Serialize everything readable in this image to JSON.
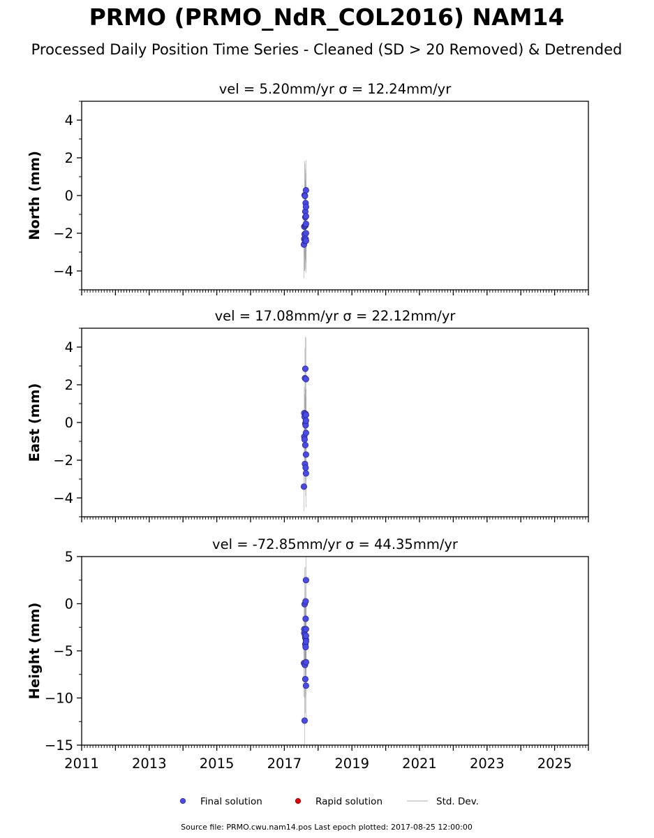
{
  "title": "PRMO (PRMO_NdR_COL2016) NAM14",
  "subtitle": "Processed Daily Position Time Series - Cleaned (SD > 20 Removed) & Detrended",
  "footer": "Source file: PRMO.cwu.nam14.pos  Last epoch plotted: 2017-08-25 12:00:00",
  "legend": [
    {
      "label": "Final solution",
      "color": "#4a4ae6",
      "kind": "marker"
    },
    {
      "label": "Rapid solution",
      "color": "#dd0000",
      "kind": "marker"
    },
    {
      "label": "Std. Dev.",
      "color": "#c8c8c8",
      "kind": "line"
    }
  ],
  "colors": {
    "final": "#4a4ae6",
    "final_edge": "#23238a",
    "std_dev": "#9a9a9a"
  },
  "chart_data": [
    {
      "type": "scatter",
      "title": "vel = 5.20mm/yr   σ = 12.24mm/yr",
      "ylabel": "North (mm)",
      "xlim": [
        2011,
        2026
      ],
      "ylim": [
        -5,
        5
      ],
      "yticks": [
        -4,
        -2,
        0,
        2,
        4
      ],
      "yticklabels": [
        "−4",
        "−2",
        "0",
        "2",
        "4"
      ],
      "x": [
        2017.58,
        2017.59,
        2017.59,
        2017.6,
        2017.6,
        2017.61,
        2017.61,
        2017.62,
        2017.62,
        2017.62,
        2017.63,
        2017.63,
        2017.63,
        2017.64,
        2017.64,
        2017.64,
        2017.64,
        2017.64,
        2017.64
      ],
      "y": [
        -2.6,
        -2.3,
        -1.65,
        -2.05,
        0.02,
        -0.02,
        -2.4,
        -1.6,
        -1.15,
        -0.85,
        -1.55,
        -2.3,
        -0.4,
        -1.5,
        -1.1,
        -0.6,
        -2.0,
        -2.4,
        0.28
      ],
      "sd": [
        1.8,
        1.7,
        1.6,
        1.9,
        1.8,
        1.7,
        1.6,
        1.8,
        1.9,
        1.7,
        1.8,
        1.6,
        1.8,
        2.0,
        1.7,
        1.8,
        1.6,
        1.7,
        1.6
      ]
    },
    {
      "type": "scatter",
      "title": "vel = 17.08mm/yr   σ = 22.12mm/yr",
      "ylabel": "East (mm)",
      "xlim": [
        2011,
        2026
      ],
      "ylim": [
        -5,
        5
      ],
      "yticks": [
        -4,
        -2,
        0,
        2,
        4
      ],
      "yticklabels": [
        "−4",
        "−2",
        "0",
        "2",
        "4"
      ],
      "x": [
        2017.58,
        2017.59,
        2017.59,
        2017.6,
        2017.6,
        2017.61,
        2017.61,
        2017.62,
        2017.62,
        2017.62,
        2017.63,
        2017.63,
        2017.63,
        2017.64,
        2017.64,
        2017.64,
        2017.64,
        2017.64,
        2017.64
      ],
      "y": [
        -3.4,
        -0.75,
        0.5,
        -0.9,
        0.3,
        2.35,
        -2.2,
        -0.05,
        2.85,
        -1.2,
        0.45,
        -2.4,
        -0.15,
        -1.7,
        2.3,
        -2.7,
        -0.55,
        0.4,
        0.1
      ],
      "sd": [
        1.3,
        1.2,
        1.4,
        1.3,
        1.2,
        1.6,
        1.3,
        1.4,
        1.7,
        1.2,
        1.3,
        1.5,
        1.2,
        1.4,
        2.2,
        1.8,
        1.3,
        1.4,
        1.2
      ]
    },
    {
      "type": "scatter",
      "title": "vel = -72.85mm/yr   σ = 44.35mm/yr",
      "ylabel": "Height (mm)",
      "xlim": [
        2011,
        2026
      ],
      "ylim": [
        -15,
        5
      ],
      "yticks": [
        -15,
        -10,
        -5,
        0,
        5
      ],
      "yticklabels": [
        "−15",
        "−10",
        "−5",
        "0",
        "5"
      ],
      "x": [
        2017.58,
        2017.59,
        2017.59,
        2017.6,
        2017.6,
        2017.61,
        2017.61,
        2017.62,
        2017.62,
        2017.62,
        2017.63,
        2017.63,
        2017.63,
        2017.64,
        2017.64,
        2017.64,
        2017.64,
        2017.64,
        2017.64,
        2017.64
      ],
      "y": [
        -6.3,
        -2.7,
        -3.1,
        -12.4,
        -0.05,
        -6.5,
        -3.3,
        -8.0,
        -3.6,
        -4.3,
        0.25,
        -1.6,
        -4.6,
        -3.8,
        -8.7,
        -2.7,
        2.5,
        -4.0,
        -3.4,
        -6.2
      ],
      "sd": [
        3.6,
        3.4,
        3.2,
        3.8,
        3.9,
        3.5,
        3.3,
        3.6,
        3.4,
        3.2,
        3.7,
        3.4,
        3.3,
        3.5,
        3.6,
        3.3,
        3.8,
        3.4,
        3.2,
        3.5
      ]
    }
  ],
  "xticks": [
    2011,
    2013,
    2015,
    2017,
    2019,
    2021,
    2023,
    2025
  ],
  "xticklabels": [
    "2011",
    "2013",
    "2015",
    "2017",
    "2019",
    "2021",
    "2023",
    "2025"
  ]
}
